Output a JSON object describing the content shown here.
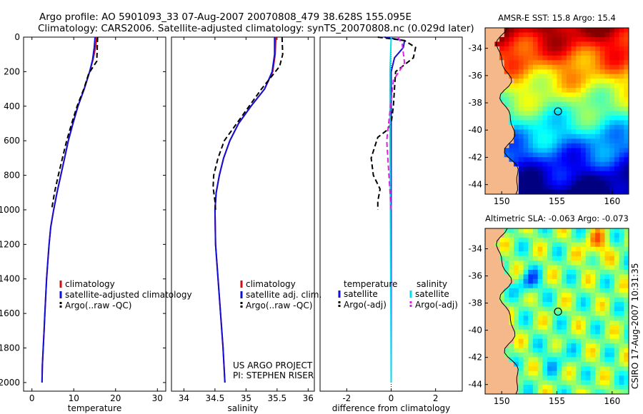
{
  "header": {
    "line1": "Argo profile: AO 5901093_33 07-Aug-2007 20070808_479 38.628S 155.095E",
    "line2": "Climatology: CARS2006. Satellite-adjusted climatology: synTS_20070808.nc (0.029d later)"
  },
  "colors": {
    "climatology": "#d01010",
    "satellite": "#1010d8",
    "argo": "#000000",
    "salinity_satellite": "#00e0f0",
    "salinity_argo": "#e020e0",
    "land": "#f4b88a"
  },
  "credits": {
    "project": "US ARGO PROJECT",
    "pi": "PI: STEPHEN RISER"
  },
  "timestamp": "CSIRO 17-Aug-2007 10:31:35",
  "chart_data": [
    {
      "type": "line",
      "xlabel": "temperature",
      "ylabel": "",
      "xlim": [
        -2,
        32
      ],
      "ylim": [
        2050,
        0
      ],
      "xticks": [
        0,
        10,
        20,
        30
      ],
      "yticks": [
        0,
        200,
        400,
        600,
        800,
        1000,
        1200,
        1400,
        1600,
        1800,
        2000
      ],
      "legend": [
        "climatology",
        "satellite-adjusted climatology",
        "Argo(..raw -QC)"
      ],
      "series": [
        {
          "name": "climatology",
          "style": "solid",
          "color": "#d01010",
          "points": [
            [
              15.5,
              0
            ],
            [
              15.2,
              60
            ],
            [
              14.6,
              130
            ],
            [
              13.8,
              200
            ],
            [
              12.5,
              300
            ],
            [
              11.0,
              400
            ],
            [
              9.8,
              500
            ],
            [
              8.7,
              600
            ],
            [
              7.8,
              700
            ],
            [
              6.9,
              800
            ],
            [
              6.0,
              900
            ],
            [
              5.2,
              1000
            ],
            [
              4.5,
              1100
            ],
            [
              4.1,
              1200
            ],
            [
              3.8,
              1300
            ],
            [
              3.5,
              1400
            ],
            [
              3.3,
              1500
            ],
            [
              3.1,
              1600
            ],
            [
              2.9,
              1700
            ],
            [
              2.7,
              1800
            ],
            [
              2.5,
              1900
            ],
            [
              2.4,
              2000
            ]
          ]
        },
        {
          "name": "satellite-adjusted climatology",
          "style": "solid",
          "color": "#1010d8",
          "points": [
            [
              15.1,
              0
            ],
            [
              14.9,
              60
            ],
            [
              14.5,
              130
            ],
            [
              13.8,
              200
            ],
            [
              12.5,
              300
            ],
            [
              11.0,
              400
            ],
            [
              9.8,
              500
            ],
            [
              8.7,
              600
            ],
            [
              7.8,
              700
            ],
            [
              6.9,
              800
            ],
            [
              6.0,
              900
            ],
            [
              5.2,
              1000
            ],
            [
              4.5,
              1100
            ],
            [
              4.1,
              1200
            ],
            [
              3.8,
              1300
            ],
            [
              3.5,
              1400
            ],
            [
              3.3,
              1500
            ],
            [
              3.1,
              1600
            ],
            [
              2.9,
              1700
            ],
            [
              2.7,
              1800
            ],
            [
              2.5,
              1900
            ],
            [
              2.4,
              2000
            ]
          ]
        },
        {
          "name": "Argo(..raw -QC)",
          "style": "dashed",
          "color": "#000000",
          "points": [
            [
              15.7,
              0
            ],
            [
              15.6,
              80
            ],
            [
              15.5,
              140
            ],
            [
              13.6,
              210
            ],
            [
              12.4,
              300
            ],
            [
              10.8,
              400
            ],
            [
              9.5,
              500
            ],
            [
              8.3,
              600
            ],
            [
              7.3,
              700
            ],
            [
              6.3,
              800
            ],
            [
              5.4,
              900
            ],
            [
              4.7,
              1000
            ]
          ]
        }
      ]
    },
    {
      "type": "line",
      "xlabel": "salinity",
      "ylabel": "",
      "xlim": [
        33.8,
        36.1
      ],
      "ylim": [
        2050,
        0
      ],
      "xticks": [
        34,
        34.5,
        35,
        35.5,
        36
      ],
      "legend": [
        "climatology",
        "satellite adj. clim.",
        "Argo(..raw -QC)"
      ],
      "series": [
        {
          "name": "climatology",
          "style": "solid",
          "color": "#d01010",
          "points": [
            [
              35.48,
              0
            ],
            [
              35.47,
              100
            ],
            [
              35.43,
              200
            ],
            [
              35.3,
              300
            ],
            [
              35.08,
              400
            ],
            [
              34.88,
              500
            ],
            [
              34.74,
              600
            ],
            [
              34.64,
              700
            ],
            [
              34.57,
              800
            ],
            [
              34.52,
              900
            ],
            [
              34.5,
              1000
            ],
            [
              34.51,
              1200
            ],
            [
              34.55,
              1400
            ],
            [
              34.59,
              1600
            ],
            [
              34.63,
              1800
            ],
            [
              34.66,
              2000
            ]
          ]
        },
        {
          "name": "satellite adj. clim.",
          "style": "solid",
          "color": "#1010d8",
          "points": [
            [
              35.46,
              0
            ],
            [
              35.46,
              100
            ],
            [
              35.42,
              200
            ],
            [
              35.3,
              300
            ],
            [
              35.08,
              400
            ],
            [
              34.88,
              500
            ],
            [
              34.74,
              600
            ],
            [
              34.64,
              700
            ],
            [
              34.57,
              800
            ],
            [
              34.52,
              900
            ],
            [
              34.5,
              1000
            ],
            [
              34.51,
              1200
            ],
            [
              34.55,
              1400
            ],
            [
              34.59,
              1600
            ],
            [
              34.63,
              1800
            ],
            [
              34.66,
              2000
            ]
          ]
        },
        {
          "name": "Argo(..raw -QC)",
          "style": "dashed",
          "color": "#000000",
          "points": [
            [
              35.58,
              0
            ],
            [
              35.59,
              100
            ],
            [
              35.54,
              170
            ],
            [
              35.25,
              300
            ],
            [
              35.05,
              400
            ],
            [
              34.85,
              500
            ],
            [
              34.65,
              600
            ],
            [
              34.55,
              700
            ],
            [
              34.48,
              800
            ],
            [
              34.47,
              870
            ],
            [
              34.5,
              950
            ],
            [
              34.51,
              1000
            ]
          ]
        }
      ]
    },
    {
      "type": "line",
      "xlabel": "difference from climatology",
      "ylabel": "",
      "xlim": [
        -3.2,
        3.2
      ],
      "ylim": [
        2050,
        0
      ],
      "xticks": [
        -2,
        0,
        2
      ],
      "legend": [
        "temperature",
        "satellite",
        "Argo(-adj)",
        "salinity",
        "satellite",
        "Argo(-adj)"
      ],
      "series": [
        {
          "name": "satellite",
          "style": "solid",
          "color": "#1010d8",
          "points": [
            [
              -0.3,
              0
            ],
            [
              0.6,
              20
            ],
            [
              0.55,
              60
            ],
            [
              0.15,
              120
            ],
            [
              0.0,
              200
            ],
            [
              0.0,
              2000
            ]
          ]
        },
        {
          "name": "Argo(-adj)",
          "style": "dashed",
          "color": "#000000",
          "points": [
            [
              -0.6,
              0
            ],
            [
              0.6,
              20
            ],
            [
              1.1,
              60
            ],
            [
              1.0,
              120
            ],
            [
              0.2,
              200
            ],
            [
              0.1,
              400
            ],
            [
              0.0,
              500
            ],
            [
              -0.2,
              540
            ],
            [
              -0.6,
              580
            ],
            [
              -0.9,
              700
            ],
            [
              -0.8,
              800
            ],
            [
              -0.5,
              880
            ],
            [
              -0.6,
              950
            ],
            [
              -0.6,
              1000
            ]
          ]
        },
        {
          "name": "satellite",
          "style": "solid",
          "color": "#00e0f0",
          "points": [
            [
              0.0,
              0
            ],
            [
              -0.05,
              200
            ],
            [
              -0.05,
              500
            ],
            [
              0.0,
              2000
            ]
          ]
        },
        {
          "name": "Argo(-adj)",
          "style": "dashed",
          "color": "#e020e0",
          "points": [
            [
              0.3,
              0
            ],
            [
              0.5,
              40
            ],
            [
              0.6,
              150
            ],
            [
              0.1,
              250
            ],
            [
              -0.2,
              600
            ],
            [
              -0.1,
              800
            ],
            [
              0.0,
              1000
            ]
          ]
        }
      ]
    },
    {
      "type": "heatmap",
      "title": "AMSR-E SST: 15.8 Argo: 15.4",
      "xlim": [
        148.5,
        161.5
      ],
      "ylim": [
        -44.7,
        -32.5
      ],
      "xticks": [
        150,
        155,
        160
      ],
      "yticks": [
        -34,
        -36,
        -38,
        -40,
        -42,
        -44
      ],
      "marker": {
        "lon": 155.1,
        "lat": -38.63
      }
    },
    {
      "type": "heatmap",
      "title": "Altimetric SLA: -0.063 Argo: -0.073",
      "xlim": [
        148.5,
        161.5
      ],
      "ylim": [
        -44.7,
        -32.5
      ],
      "xticks": [
        150,
        155,
        160
      ],
      "yticks": [
        -34,
        -36,
        -38,
        -40,
        -42,
        -44
      ],
      "marker": {
        "lon": 155.1,
        "lat": -38.63
      }
    }
  ]
}
